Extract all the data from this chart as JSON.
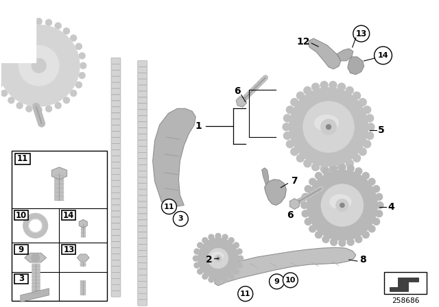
{
  "background_color": "#ffffff",
  "diagram_number": "258686",
  "figsize": [
    6.4,
    4.48
  ],
  "dpi": 100,
  "gray_light": "#d8d8d8",
  "gray_mid": "#b8b8b8",
  "gray_dark": "#909090",
  "gray_darker": "#707070",
  "chain_color": "#d0d0d0",
  "chain_edge": "#a0a0a0",
  "part_fill": "#c0c0c0",
  "part_edge": "#888888",
  "label_color": "#000000"
}
